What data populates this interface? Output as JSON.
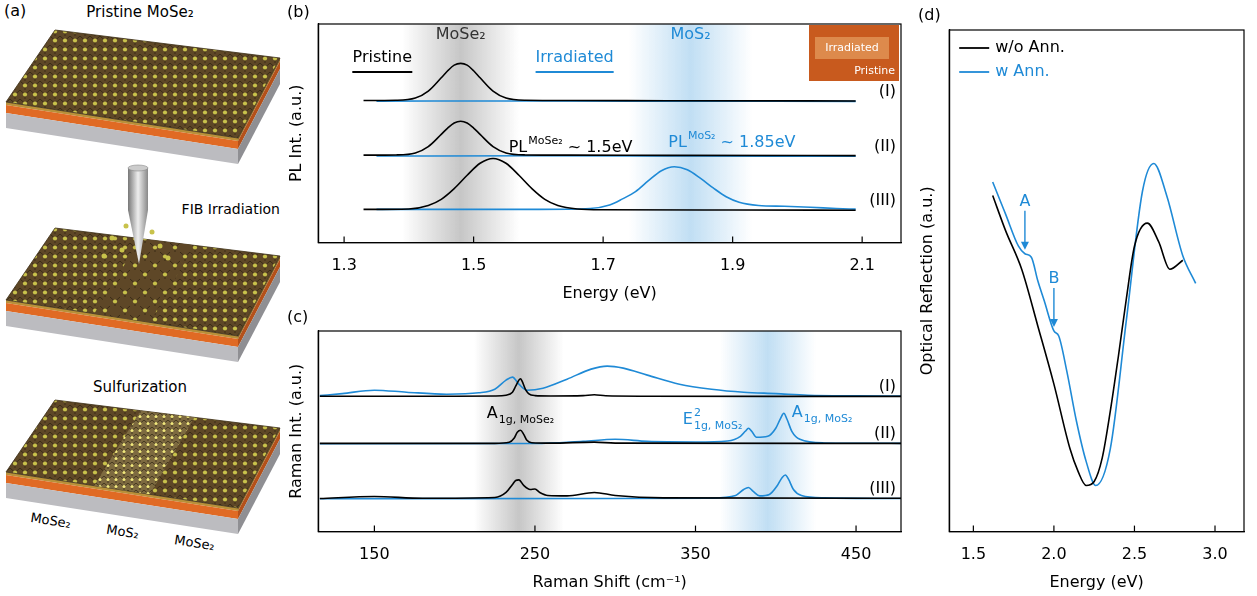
{
  "schematic": {
    "panel": "(a)",
    "steps": [
      "Pristine MoSe₂",
      "FIB Irradiation",
      "Sulfurization"
    ],
    "regions": [
      "MoSe₂",
      "MoS₂",
      "MoSe₂"
    ]
  },
  "chart_data": [
    {
      "panel": "(b)",
      "type": "line",
      "x_label": "Energy (eV)",
      "y_label": "PL Int. (a.u.)",
      "xlim": [
        1.26,
        2.16
      ],
      "xticks": [
        1.3,
        1.5,
        1.7,
        1.9,
        2.1
      ],
      "ylim": [
        0,
        10
      ],
      "tick_labels": "x",
      "grid": false,
      "legend": "top-left",
      "regions": [
        {
          "label": "MoSe₂",
          "from": 1.39,
          "to": 1.57,
          "color": "#333333"
        },
        {
          "label": "MoS₂",
          "from": 1.74,
          "to": 1.93,
          "color": "#1f8ad6"
        }
      ],
      "series": [
        {
          "name": "Pristine",
          "trace": "(I)",
          "color": "#000000",
          "x": [
            1.33,
            1.38,
            1.41,
            1.43,
            1.45,
            1.46,
            1.47,
            1.48,
            1.49,
            1.5,
            1.51,
            1.53,
            1.55,
            1.58,
            1.65,
            1.8,
            2.09
          ],
          "values": [
            6.5,
            6.51,
            6.61,
            6.93,
            7.54,
            7.86,
            8.12,
            8.2,
            8.12,
            7.86,
            7.54,
            6.93,
            6.61,
            6.51,
            6.5,
            6.49,
            6.48
          ]
        },
        {
          "name": "Irradiated",
          "trace": "(I)",
          "color": "#1f8ad6",
          "x": [
            1.35,
            1.6,
            1.85,
            2.09
          ],
          "values": [
            6.47,
            6.48,
            6.47,
            6.46
          ]
        },
        {
          "name": "Pristine",
          "trace": "(II)",
          "color": "#000000",
          "x": [
            1.33,
            1.38,
            1.41,
            1.43,
            1.45,
            1.46,
            1.47,
            1.48,
            1.49,
            1.5,
            1.51,
            1.53,
            1.55,
            1.58,
            1.65,
            1.8,
            2.09
          ],
          "values": [
            4.0,
            4.01,
            4.1,
            4.39,
            4.95,
            5.24,
            5.47,
            5.55,
            5.47,
            5.24,
            4.95,
            4.39,
            4.1,
            4.01,
            4.0,
            3.99,
            3.98
          ]
        },
        {
          "name": "Irradiated",
          "trace": "(II)",
          "color": "#1f8ad6",
          "x": [
            1.35,
            1.6,
            1.85,
            2.09
          ],
          "values": [
            3.96,
            3.97,
            3.96,
            3.95
          ]
        },
        {
          "name": "Pristine",
          "trace": "(III)",
          "color": "#000000",
          "x": [
            1.33,
            1.4,
            1.43,
            1.45,
            1.47,
            1.49,
            1.51,
            1.53,
            1.55,
            1.57,
            1.59,
            1.61,
            1.63,
            1.66,
            1.7,
            1.9,
            2.09
          ],
          "values": [
            1.52,
            1.54,
            1.7,
            1.98,
            2.47,
            3.08,
            3.63,
            3.85,
            3.63,
            3.08,
            2.47,
            1.98,
            1.7,
            1.54,
            1.5,
            1.49,
            1.48
          ]
        },
        {
          "name": "Irradiated",
          "trace": "(III)",
          "color": "#1f8ad6",
          "x": [
            1.35,
            1.6,
            1.68,
            1.71,
            1.73,
            1.75,
            1.77,
            1.79,
            1.81,
            1.83,
            1.85,
            1.87,
            1.89,
            1.91,
            1.94,
            1.98,
            2.02,
            2.06,
            2.09
          ],
          "values": [
            1.52,
            1.52,
            1.56,
            1.72,
            2.0,
            2.33,
            2.83,
            3.29,
            3.47,
            3.33,
            2.95,
            2.5,
            2.1,
            1.85,
            1.7,
            1.66,
            1.62,
            1.56,
            1.53
          ]
        }
      ],
      "annotations": [
        {
          "text": "PL",
          "sup": "MoSe₂",
          "after": " ~ 1.5eV",
          "x": 1.48,
          "trace": "(II)",
          "color": "#000000"
        },
        {
          "text": "PL",
          "sup": "MoS₂",
          "after": " ~ 1.85eV",
          "x": 1.81,
          "trace": "(III)",
          "color": "#1f8ad6"
        }
      ],
      "inset": {
        "labels": [
          "Irradiated",
          "Pristine"
        ]
      }
    },
    {
      "panel": "(c)",
      "type": "line",
      "x_label": "Raman Shift (cm⁻¹)",
      "y_label": "Raman Int. (a.u.)",
      "xlim": [
        115,
        478
      ],
      "xticks": [
        150,
        250,
        350,
        450
      ],
      "ylim": [
        0,
        10
      ],
      "tick_labels": "x",
      "grid": false,
      "regions": [
        {
          "from": 212,
          "to": 268,
          "color": "#333333"
        },
        {
          "from": 365,
          "to": 425,
          "color": "#1f8ad6"
        }
      ],
      "series": [
        {
          "name": "Pristine",
          "trace": "(I)",
          "color": "#000000",
          "x": [
            116,
            200,
            225,
            232,
            236,
            238,
            240,
            241,
            242,
            244,
            246,
            250,
            260,
            280,
            287,
            294,
            320,
            400,
            478
          ],
          "values": [
            6.75,
            6.75,
            6.76,
            6.8,
            6.95,
            7.25,
            7.55,
            7.62,
            7.5,
            7.1,
            6.88,
            6.78,
            6.76,
            6.78,
            6.82,
            6.77,
            6.75,
            6.74,
            6.74
          ]
        },
        {
          "name": "Irradiated",
          "trace": "(I)",
          "color": "#1f8ad6",
          "x": [
            116,
            130,
            150,
            170,
            195,
            215,
            225,
            232,
            236,
            240,
            245,
            255,
            270,
            285,
            295,
            305,
            320,
            340,
            360,
            380,
            400,
            420,
            450,
            478
          ],
          "values": [
            6.78,
            6.88,
            7.05,
            6.95,
            6.85,
            6.92,
            7.1,
            7.55,
            7.7,
            7.35,
            7.05,
            7.15,
            7.6,
            8.1,
            8.25,
            8.15,
            7.8,
            7.35,
            7.1,
            6.95,
            6.88,
            6.8,
            6.77,
            6.76
          ]
        },
        {
          "name": "Pristine",
          "trace": "(II)",
          "color": "#000000",
          "x": [
            116,
            225,
            234,
            237,
            239,
            241,
            243,
            245,
            248,
            260,
            287,
            300,
            478
          ],
          "values": [
            4.4,
            4.4,
            4.45,
            4.65,
            4.95,
            5.05,
            4.85,
            4.55,
            4.43,
            4.41,
            4.46,
            4.41,
            4.4
          ]
        },
        {
          "name": "Irradiated",
          "trace": "(II)",
          "color": "#1f8ad6",
          "x": [
            116,
            250,
            280,
            300,
            320,
            350,
            370,
            378,
            381,
            383,
            385,
            388,
            395,
            400,
            403,
            405,
            407,
            410,
            415,
            430,
            478
          ],
          "values": [
            4.38,
            4.39,
            4.5,
            4.6,
            4.5,
            4.47,
            4.52,
            4.75,
            5.0,
            5.15,
            5.0,
            4.7,
            4.75,
            5.15,
            5.65,
            5.9,
            5.6,
            5.0,
            4.6,
            4.42,
            4.4
          ]
        },
        {
          "name": "Pristine",
          "trace": "(III)",
          "color": "#000000",
          "x": [
            116,
            150,
            180,
            225,
            232,
            236,
            238,
            240,
            243,
            247,
            250,
            253,
            258,
            270,
            287,
            300,
            330,
            478
          ],
          "values": [
            1.65,
            1.75,
            1.66,
            1.7,
            1.95,
            2.35,
            2.55,
            2.58,
            2.3,
            2.1,
            2.12,
            1.95,
            1.8,
            1.78,
            1.95,
            1.8,
            1.68,
            1.66
          ]
        },
        {
          "name": "Irradiated",
          "trace": "(III)",
          "color": "#1f8ad6",
          "x": [
            116,
            300,
            360,
            375,
            380,
            383,
            386,
            390,
            396,
            401,
            404,
            406,
            408,
            411,
            416,
            430,
            478
          ],
          "values": [
            1.64,
            1.65,
            1.67,
            1.8,
            2.1,
            2.2,
            2.0,
            1.78,
            1.85,
            2.3,
            2.7,
            2.82,
            2.6,
            2.1,
            1.8,
            1.68,
            1.65
          ]
        }
      ],
      "annotations": [
        {
          "text": "A",
          "sub": "1g, MoSe₂",
          "x": 241,
          "trace": "(II)",
          "color": "#000000"
        },
        {
          "text": "E",
          "sup": "2",
          "sub": "1g, MoS₂",
          "x": 383,
          "trace": "(II)",
          "color": "#1f8ad6"
        },
        {
          "text": "A",
          "sub": "1g, MoS₂",
          "x": 405,
          "trace": "(II)",
          "color": "#1f8ad6"
        }
      ]
    },
    {
      "panel": "(d)",
      "type": "line",
      "x_label": "Energy (eV)",
      "y_label": "Optical Reflection (a.u.)",
      "xlim": [
        1.35,
        3.18
      ],
      "xticks": [
        1.5,
        {
          "value": 2,
          "label": "2.0"
        },
        2.5,
        {
          "value": 3,
          "label": "3.0"
        }
      ],
      "ylim": [
        0,
        10
      ],
      "tick_labels": "x",
      "grid": false,
      "legend": "top-left",
      "series": [
        {
          "name": "w/o Ann.",
          "color": "#000000",
          "x": [
            1.62,
            1.7,
            1.8,
            1.9,
            2.0,
            2.1,
            2.15,
            2.2,
            2.25,
            2.3,
            2.35,
            2.4,
            2.45,
            2.5,
            2.58,
            2.65,
            2.72,
            2.8
          ],
          "values": [
            6.7,
            6.0,
            5.23,
            4.1,
            2.94,
            1.65,
            1.2,
            0.92,
            1.0,
            1.47,
            2.4,
            3.49,
            4.65,
            5.69,
            6.15,
            5.78,
            5.23,
            5.41
          ]
        },
        {
          "name": "w Ann.",
          "color": "#1f8ad6",
          "x": [
            1.62,
            1.7,
            1.78,
            1.82,
            1.86,
            1.9,
            1.94,
            2.0,
            2.03,
            2.08,
            2.14,
            2.2,
            2.26,
            2.35,
            2.45,
            2.55,
            2.62,
            2.7,
            2.8,
            2.88
          ],
          "values": [
            6.97,
            6.33,
            5.69,
            5.54,
            5.47,
            5.0,
            4.6,
            4.0,
            3.9,
            3.2,
            2.2,
            1.4,
            0.92,
            1.65,
            4.22,
            6.79,
            7.34,
            6.7,
            5.5,
            4.95
          ]
        }
      ],
      "arrow_labels": [
        {
          "label": "A",
          "x": 1.82,
          "series": "w Ann.",
          "color": "#1f8ad6"
        },
        {
          "label": "B",
          "x": 2.0,
          "series": "w Ann.",
          "color": "#1f8ad6"
        }
      ]
    }
  ]
}
